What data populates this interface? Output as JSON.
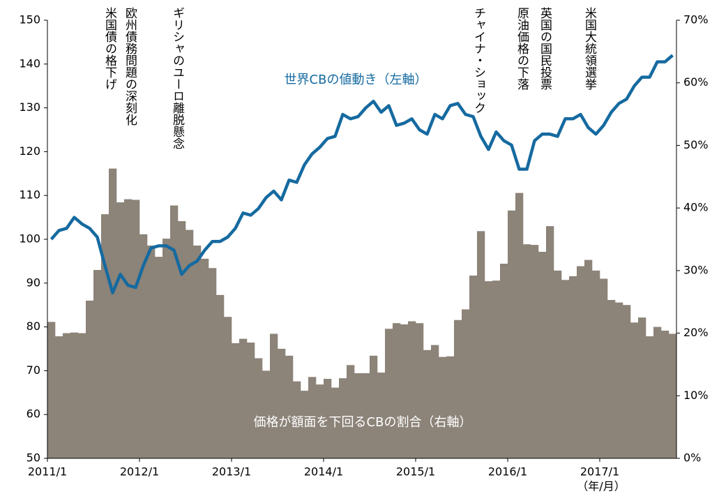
{
  "chart_data": {
    "type": "bar_line",
    "x_label": "（年/月）",
    "categories": [
      "2011/1",
      null,
      null,
      null,
      null,
      null,
      null,
      null,
      null,
      null,
      null,
      null,
      "2012/1",
      null,
      null,
      null,
      null,
      null,
      null,
      null,
      null,
      null,
      null,
      null,
      "2013/1",
      null,
      null,
      null,
      null,
      null,
      null,
      null,
      null,
      null,
      null,
      null,
      "2014/1",
      null,
      null,
      null,
      null,
      null,
      null,
      null,
      null,
      null,
      null,
      null,
      "2015/1",
      null,
      null,
      null,
      null,
      null,
      null,
      null,
      null,
      null,
      null,
      null,
      "2016/1",
      null,
      null,
      null,
      null,
      null,
      null,
      null,
      null,
      null,
      null,
      null,
      "2017/1",
      null,
      null,
      null,
      null,
      null,
      null,
      null,
      null,
      null
    ],
    "series": [
      {
        "name": "価格が額面を下回るCBの割合（右軸）",
        "type": "bar",
        "axis": "y2",
        "color": "#8c8379",
        "values": [
          21.8,
          19.5,
          20,
          20.1,
          20,
          25.2,
          30.1,
          39,
          46.3,
          40.9,
          41.4,
          41.3,
          35.8,
          34,
          32.2,
          35.1,
          40.4,
          37.9,
          36.5,
          34,
          31.9,
          30.4,
          26.1,
          22.6,
          18.4,
          19.1,
          18.5,
          16,
          14,
          19.9,
          17.5,
          16.4,
          12.3,
          10.8,
          13,
          11.8,
          12.7,
          11.3,
          12.8,
          14.9,
          13.6,
          13.6,
          16.4,
          13.7,
          20.7,
          21.6,
          21.4,
          21.9,
          21.6,
          17.3,
          18.1,
          16.2,
          16.3,
          22.1,
          23.8,
          29.2,
          36.3,
          28.3,
          28.4,
          31.1,
          39.6,
          42.4,
          34.2,
          34.1,
          33,
          37.1,
          30,
          28.5,
          29.1,
          30.7,
          31.7,
          30,
          28.7,
          25.3,
          24.9,
          24.5,
          21.7,
          22.5,
          19.5,
          21,
          20.4,
          19.9
        ]
      },
      {
        "name": "世界CBの値動き（左軸）",
        "type": "line",
        "axis": "y",
        "color": "#156aa0",
        "values": [
          100,
          102,
          102.5,
          105,
          103.5,
          102.5,
          100.5,
          94,
          87.8,
          92,
          89.5,
          89,
          94,
          98,
          98.5,
          98.5,
          97.5,
          92,
          94,
          95,
          97.5,
          99.5,
          99.5,
          100.5,
          102.5,
          106,
          105.5,
          107,
          109.5,
          111,
          109,
          113.5,
          113,
          117,
          119.5,
          121,
          123,
          123.5,
          128.5,
          127.5,
          128,
          130,
          131.5,
          129,
          130.5,
          126,
          126.5,
          127.5,
          125,
          124,
          128.5,
          127.5,
          130.5,
          131,
          128.5,
          128,
          123.5,
          120.5,
          124.5,
          122.5,
          121.5,
          116,
          116,
          122.5,
          124,
          124,
          123.5,
          127.5,
          127.5,
          128.5,
          125.5,
          124,
          126,
          129,
          131,
          132,
          135,
          137,
          137,
          140.5,
          140.5,
          142
        ]
      }
    ],
    "ylim": [
      50,
      150
    ],
    "yticks": [
      50,
      60,
      70,
      80,
      90,
      100,
      110,
      120,
      130,
      140,
      150
    ],
    "y2lim": [
      0,
      70
    ],
    "y2ticks": [
      {
        "value": 0,
        "label": "0%"
      },
      {
        "value": 10,
        "label": "10%"
      },
      {
        "value": 20,
        "label": "20%"
      },
      {
        "value": 30,
        "label": "30%"
      },
      {
        "value": 40,
        "label": "40%"
      },
      {
        "value": 50,
        "label": "50%"
      },
      {
        "value": 60,
        "label": "60%"
      },
      {
        "value": 70,
        "label": "70%"
      }
    ],
    "annotations": [
      "米国債の格下げ",
      "欧州債務問題の深刻化",
      "ギリシャのユーロ離脱懸念",
      "チャイナ・ショック",
      "原油価格の下落",
      "英国の国民投票",
      "米国大統領選挙"
    ]
  }
}
